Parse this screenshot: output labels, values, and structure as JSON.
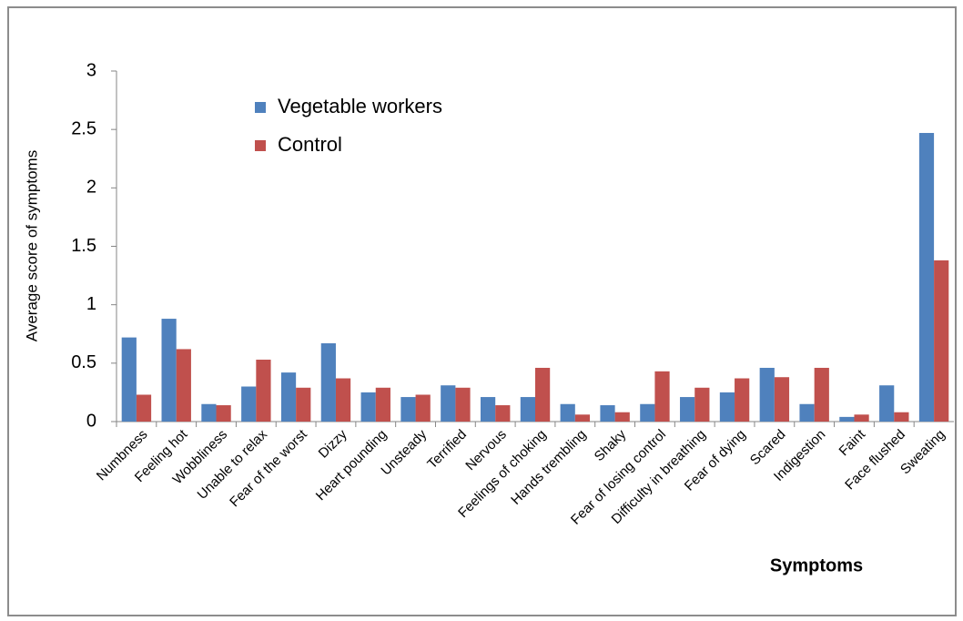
{
  "chart_data": {
    "type": "bar",
    "y_label": "Average score of symptoms",
    "x_label": "Symptoms",
    "categories": [
      "Numbness",
      "Feeling hot",
      "Wobbliness",
      "Unable to relax",
      "Fear of the worst",
      "Dizzy",
      "Heart pounding",
      "Unsteady",
      "Terrified",
      "Nervous",
      "Feelings of choking",
      "Hands trembling",
      "Shaky",
      "Fear of losing control",
      "Difficulty in breathing",
      "Fear of dying",
      "Scared",
      "Indigestion",
      "Faint",
      "Face flushed",
      "Sweating"
    ],
    "series": [
      {
        "name": "Vegetable workers",
        "color": "#4f81bd",
        "values": [
          0.72,
          0.88,
          0.15,
          0.3,
          0.42,
          0.67,
          0.25,
          0.21,
          0.31,
          0.21,
          0.21,
          0.15,
          0.14,
          0.15,
          0.21,
          0.25,
          0.46,
          0.15,
          0.04,
          0.31,
          2.47
        ]
      },
      {
        "name": "Control",
        "color": "#c0504d",
        "values": [
          0.23,
          0.62,
          0.14,
          0.53,
          0.29,
          0.37,
          0.29,
          0.23,
          0.29,
          0.14,
          0.46,
          0.06,
          0.08,
          0.43,
          0.29,
          0.37,
          0.38,
          0.46,
          0.06,
          0.08,
          1.38
        ]
      }
    ],
    "ylim": [
      0,
      3
    ],
    "yticks": [
      0,
      0.5,
      1,
      1.5,
      2,
      2.5,
      3
    ],
    "grid": false
  }
}
